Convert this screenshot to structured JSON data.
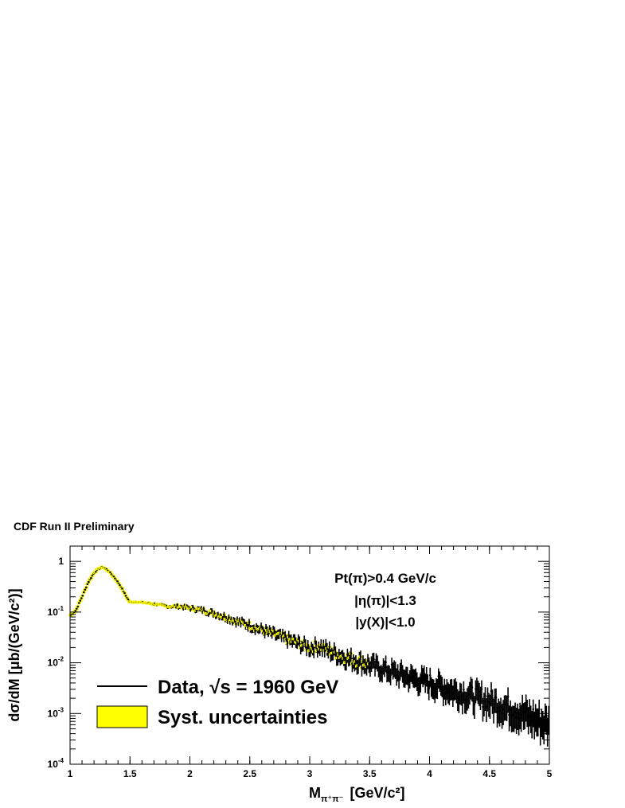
{
  "header": {
    "title": "CDF Run II Preliminary"
  },
  "chart_data": {
    "type": "scatter",
    "title": "CDF Run II Preliminary",
    "xlabel": {
      "main": "M",
      "sub": "π⁺π⁻",
      "unit": "[GeV/c²]"
    },
    "ylabel": "dσ/dM  [μb/(GeV/c²)]",
    "xlim": [
      1,
      5
    ],
    "ylim": [
      0.0001,
      2
    ],
    "yscale": "log",
    "x_ticks": [
      {
        "v": 1,
        "label": "1"
      },
      {
        "v": 1.5,
        "label": "1.5"
      },
      {
        "v": 2,
        "label": "2"
      },
      {
        "v": 2.5,
        "label": "2.5"
      },
      {
        "v": 3,
        "label": "3"
      },
      {
        "v": 3.5,
        "label": "3.5"
      },
      {
        "v": 4,
        "label": "4"
      },
      {
        "v": 4.5,
        "label": "4.5"
      },
      {
        "v": 5,
        "label": "5"
      }
    ],
    "y_ticks": [
      {
        "v": 1,
        "base": "1",
        "exp": ""
      },
      {
        "v": 0.1,
        "base": "10",
        "exp": "-1"
      },
      {
        "v": 0.01,
        "base": "10",
        "exp": "-2"
      },
      {
        "v": 0.001,
        "base": "10",
        "exp": "-3"
      },
      {
        "v": 0.0001,
        "base": "10",
        "exp": "-4"
      }
    ],
    "cuts": [
      "Pt(π)>0.4 GeV/c",
      "|η(π)|<1.3",
      "|y(X)|<1.0"
    ],
    "legend": {
      "placement": "bottom-left",
      "entries": [
        {
          "name": "Data,  √s = 1960 GeV",
          "style": "marker-errorbar",
          "color": "#000000"
        },
        {
          "name": "Syst. uncertainties",
          "style": "filled-box",
          "color": "#ffff00"
        }
      ]
    },
    "grid": false,
    "series": [
      {
        "name": "Data,  √s = 1960 GeV",
        "x": [
          1.0,
          1.05,
          1.1,
          1.15,
          1.2,
          1.25,
          1.28,
          1.32,
          1.37,
          1.42,
          1.47,
          1.5,
          1.55,
          1.6,
          1.65,
          1.7,
          1.8,
          1.9,
          2.0,
          2.1,
          2.2,
          2.3,
          2.4,
          2.5,
          2.6,
          2.7,
          2.8,
          2.9,
          3.0,
          3.08,
          3.15,
          3.3,
          3.5,
          3.7,
          3.9,
          4.1,
          4.3,
          4.5,
          4.7,
          4.9,
          5.0
        ],
        "y": [
          0.085,
          0.11,
          0.2,
          0.38,
          0.6,
          0.75,
          0.76,
          0.65,
          0.48,
          0.33,
          0.2,
          0.155,
          0.16,
          0.155,
          0.15,
          0.145,
          0.13,
          0.13,
          0.12,
          0.11,
          0.095,
          0.08,
          0.065,
          0.055,
          0.045,
          0.037,
          0.03,
          0.025,
          0.02,
          0.022,
          0.018,
          0.013,
          0.0095,
          0.0068,
          0.005,
          0.0036,
          0.0026,
          0.0019,
          0.0013,
          0.00085,
          0.0007
        ]
      }
    ]
  }
}
